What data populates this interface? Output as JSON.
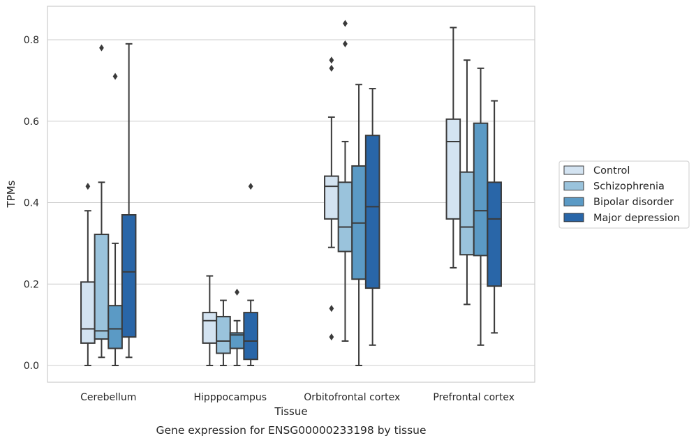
{
  "chart_data": {
    "type": "box",
    "title": "Gene expression for ENSG00000233198 by tissue",
    "xlabel": "Tissue",
    "ylabel": "TPMs",
    "ylim": [
      -0.04,
      0.885
    ],
    "yticks": [
      0.0,
      0.2,
      0.4,
      0.6,
      0.8
    ],
    "ytick_labels": [
      "0.0",
      "0.2",
      "0.4",
      "0.6",
      "0.8"
    ],
    "grid": "horizontal",
    "legend_position": "right",
    "categories": [
      "Cerebellum",
      "Hipppocampus",
      "Orbitofrontal cortex",
      "Prefrontal cortex"
    ],
    "series": [
      {
        "name": "Control",
        "color": "#d3e3f1",
        "boxes": [
          {
            "whisker_low": 0.0,
            "q1": 0.055,
            "median": 0.09,
            "q3": 0.205,
            "whisker_high": 0.38,
            "outliers": [
              0.44
            ]
          },
          {
            "whisker_low": 0.0,
            "q1": 0.055,
            "median": 0.11,
            "q3": 0.13,
            "whisker_high": 0.22,
            "outliers": []
          },
          {
            "whisker_low": 0.29,
            "q1": 0.36,
            "median": 0.44,
            "q3": 0.465,
            "whisker_high": 0.61,
            "outliers": [
              0.73,
              0.75,
              0.14,
              0.07
            ]
          },
          {
            "whisker_low": 0.24,
            "q1": 0.36,
            "median": 0.55,
            "q3": 0.605,
            "whisker_high": 0.83,
            "outliers": []
          }
        ]
      },
      {
        "name": "Schizophrenia",
        "color": "#9ac3dc",
        "boxes": [
          {
            "whisker_low": 0.02,
            "q1": 0.065,
            "median": 0.085,
            "q3": 0.322,
            "whisker_high": 0.45,
            "outliers": [
              0.78
            ]
          },
          {
            "whisker_low": 0.0,
            "q1": 0.03,
            "median": 0.06,
            "q3": 0.12,
            "whisker_high": 0.16,
            "outliers": []
          },
          {
            "whisker_low": 0.06,
            "q1": 0.28,
            "median": 0.34,
            "q3": 0.45,
            "whisker_high": 0.55,
            "outliers": [
              0.79,
              0.84
            ]
          },
          {
            "whisker_low": 0.15,
            "q1": 0.272,
            "median": 0.34,
            "q3": 0.475,
            "whisker_high": 0.75,
            "outliers": []
          }
        ]
      },
      {
        "name": "Bipolar disorder",
        "color": "#5b9ac5",
        "boxes": [
          {
            "whisker_low": 0.0,
            "q1": 0.042,
            "median": 0.09,
            "q3": 0.147,
            "whisker_high": 0.3,
            "outliers": [
              0.71
            ]
          },
          {
            "whisker_low": 0.0,
            "q1": 0.042,
            "median": 0.075,
            "q3": 0.08,
            "whisker_high": 0.11,
            "outliers": [
              0.18
            ]
          },
          {
            "whisker_low": 0.0,
            "q1": 0.212,
            "median": 0.35,
            "q3": 0.49,
            "whisker_high": 0.69,
            "outliers": []
          },
          {
            "whisker_low": 0.05,
            "q1": 0.27,
            "median": 0.38,
            "q3": 0.595,
            "whisker_high": 0.73,
            "outliers": []
          }
        ]
      },
      {
        "name": "Major depression",
        "color": "#2966a8",
        "boxes": [
          {
            "whisker_low": 0.02,
            "q1": 0.07,
            "median": 0.23,
            "q3": 0.37,
            "whisker_high": 0.79,
            "outliers": []
          },
          {
            "whisker_low": 0.0,
            "q1": 0.015,
            "median": 0.06,
            "q3": 0.13,
            "whisker_high": 0.16,
            "outliers": [
              0.44
            ]
          },
          {
            "whisker_low": 0.05,
            "q1": 0.19,
            "median": 0.39,
            "q3": 0.565,
            "whisker_high": 0.68,
            "outliers": []
          },
          {
            "whisker_low": 0.08,
            "q1": 0.195,
            "median": 0.36,
            "q3": 0.45,
            "whisker_high": 0.65,
            "outliers": []
          }
        ]
      }
    ]
  },
  "colors": {
    "box_edge": "#3a3a3a",
    "grid": "#cccccc",
    "frame": "#cccccc",
    "text": "#262626"
  }
}
